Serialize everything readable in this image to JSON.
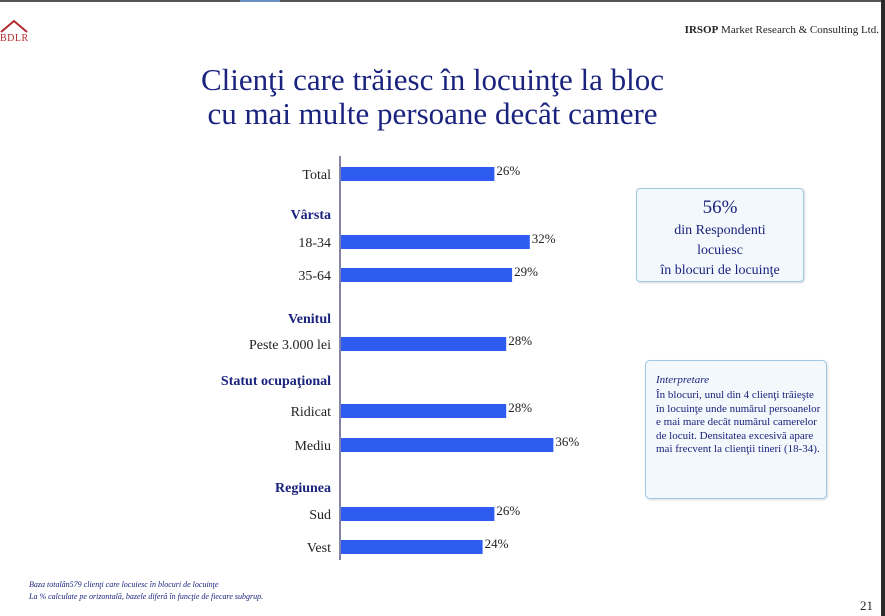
{
  "header": {
    "logo_text": "BDLR",
    "company_bold": "IRSOP",
    "company_rest": " Market Research & Consulting Ltd."
  },
  "title": {
    "line1": "Clienţi care trăiesc în locuinţe la bloc",
    "line2": "cu mai multe persoane decât camere"
  },
  "chart_data": {
    "type": "bar",
    "orientation": "horizontal",
    "bar_color": "#2f5cf0",
    "value_suffix": "%",
    "rows": [
      {
        "kind": "bar",
        "label": "Total",
        "value": 26
      },
      {
        "kind": "group",
        "label": "Vârsta"
      },
      {
        "kind": "bar",
        "label": "18-34",
        "value": 32
      },
      {
        "kind": "bar",
        "label": "35-64",
        "value": 29
      },
      {
        "kind": "group",
        "label": "Venitul"
      },
      {
        "kind": "bar",
        "label": "Peste 3.000 lei",
        "value": 28
      },
      {
        "kind": "group",
        "label": "Statut ocupaţional"
      },
      {
        "kind": "bar",
        "label": "Ridicat",
        "value": 28
      },
      {
        "kind": "bar",
        "label": "Mediu",
        "value": 36
      },
      {
        "kind": "group",
        "label": "Regiunea"
      },
      {
        "kind": "bar",
        "label": "Sud",
        "value": 26
      },
      {
        "kind": "bar",
        "label": "Vest",
        "value": 24
      }
    ]
  },
  "callout": {
    "value": "56%",
    "line1": "din Respondenti",
    "line2": "locuiesc",
    "line3": "în blocuri de locuinţe"
  },
  "interpretation": {
    "heading": "Interpretare",
    "text": "În blocuri, unul din 4 clienţi trăieşte în locuinţe unde numărul persoanelor e mai mare decât numărul camerelor de locuit. Densitatea excesivă apare mai frecvent la clienţii tineri (18-34)."
  },
  "footnotes": {
    "line1": "Baza totalân579 clienţi care locuiesc în blocuri de locuinţe",
    "line2": "La % calculate pe orizontală, bazele diferă în funcţie de fiecare subgrup."
  },
  "page_number": "21"
}
